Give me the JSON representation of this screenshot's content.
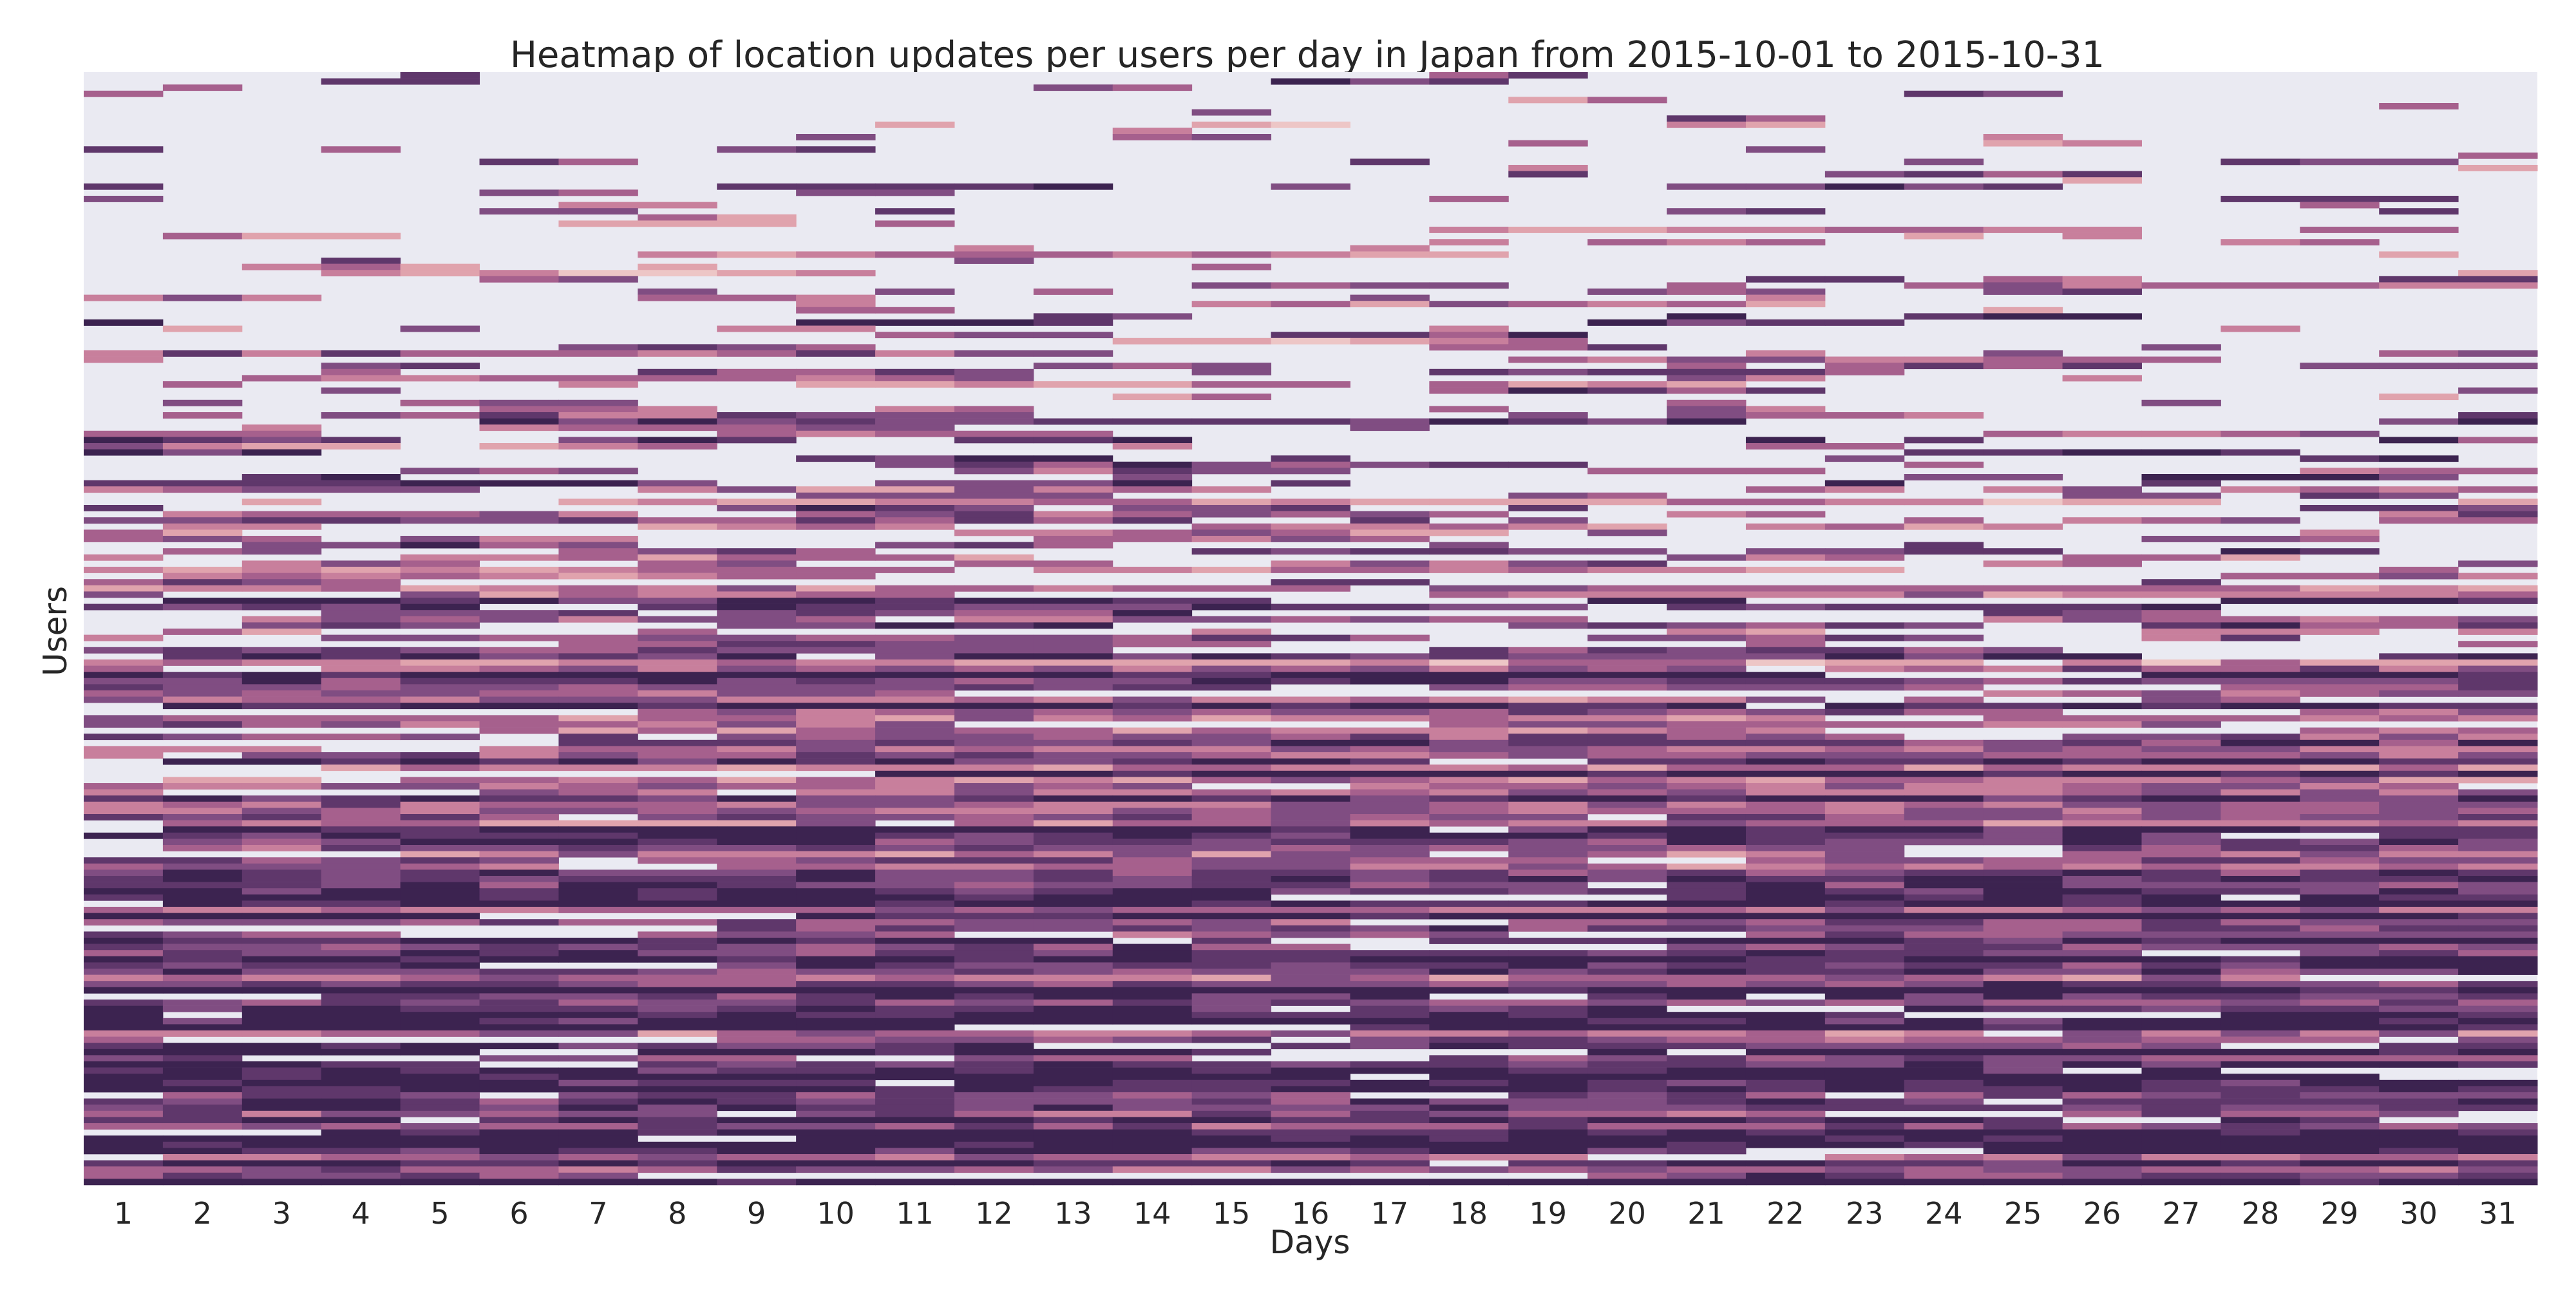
{
  "chart_data": {
    "type": "heatmap",
    "title": "Heatmap of location updates per users per day in Japan from 2015-10-01 to 2015-10-31",
    "xlabel": "Days",
    "ylabel": "Users",
    "x": [
      "1",
      "2",
      "3",
      "4",
      "5",
      "6",
      "7",
      "8",
      "9",
      "10",
      "11",
      "12",
      "13",
      "14",
      "15",
      "16",
      "17",
      "18",
      "19",
      "20",
      "21",
      "22",
      "23",
      "24",
      "25",
      "26",
      "27",
      "28",
      "29",
      "30",
      "31"
    ],
    "background_color": "#eaeaf2",
    "colormap": [
      "#edc6c6",
      "#e0a3ad",
      "#c87f9c",
      "#a6608d",
      "#804d82",
      "#5f376b",
      "#3c2350"
    ],
    "grid": false,
    "legend": "none",
    "rows_approx": 180,
    "days_active_per_row_note": "",
    "row_profile": [
      [
        0.04,
        0.06,
        0.1,
        0.1
      ],
      [
        0.22,
        0.3,
        0.22,
        0.18
      ],
      [
        0.4,
        0.5,
        0.38,
        0.3
      ],
      [
        0.55,
        0.7,
        0.6,
        0.62
      ],
      [
        0.7,
        0.88,
        0.92,
        0.9
      ],
      [
        0.82,
        1.0,
        0.98,
        0.97
      ]
    ]
  }
}
